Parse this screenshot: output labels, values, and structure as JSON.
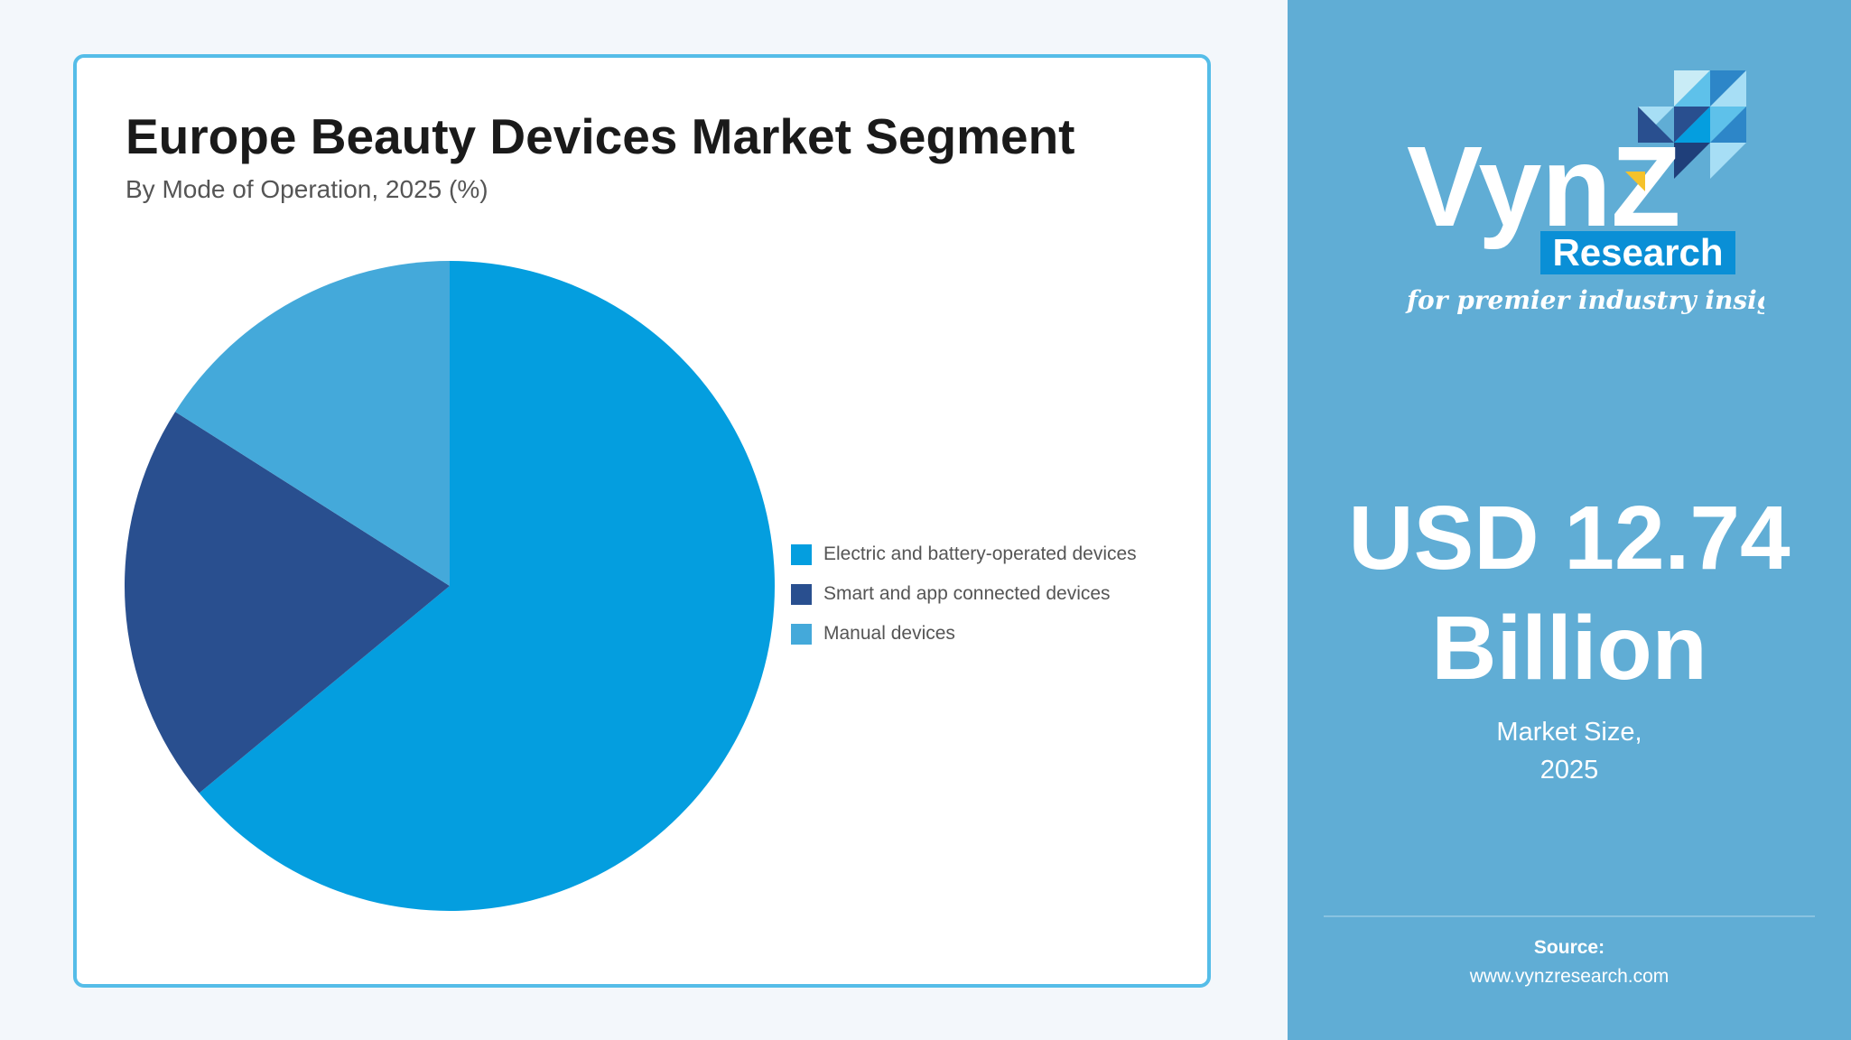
{
  "chart_data": {
    "type": "pie",
    "title": "Europe Beauty Devices Market Segment",
    "subtitle": "By Mode of Operation, 2025 (%)",
    "categories": [
      "Electric and battery-operated devices",
      "Smart and app connected devices",
      "Manual devices"
    ],
    "values": [
      64,
      20,
      16
    ],
    "colors": [
      "#049edf",
      "#294f8f",
      "#44a9da"
    ],
    "legend_position": "right"
  },
  "panel": {
    "logo": {
      "brand": "VynZ",
      "tag": "Research",
      "tagline": "for premier industry insights"
    },
    "value": "USD 12.74 Billion",
    "caption_line1": "Market Size,",
    "caption_line2": "2025",
    "source_label": "Source:",
    "source_url": "www.vynzresearch.com"
  },
  "colors": {
    "panel_background": "#60add5",
    "card_border": "#55bde8",
    "page_background": "#f3f7fb"
  }
}
